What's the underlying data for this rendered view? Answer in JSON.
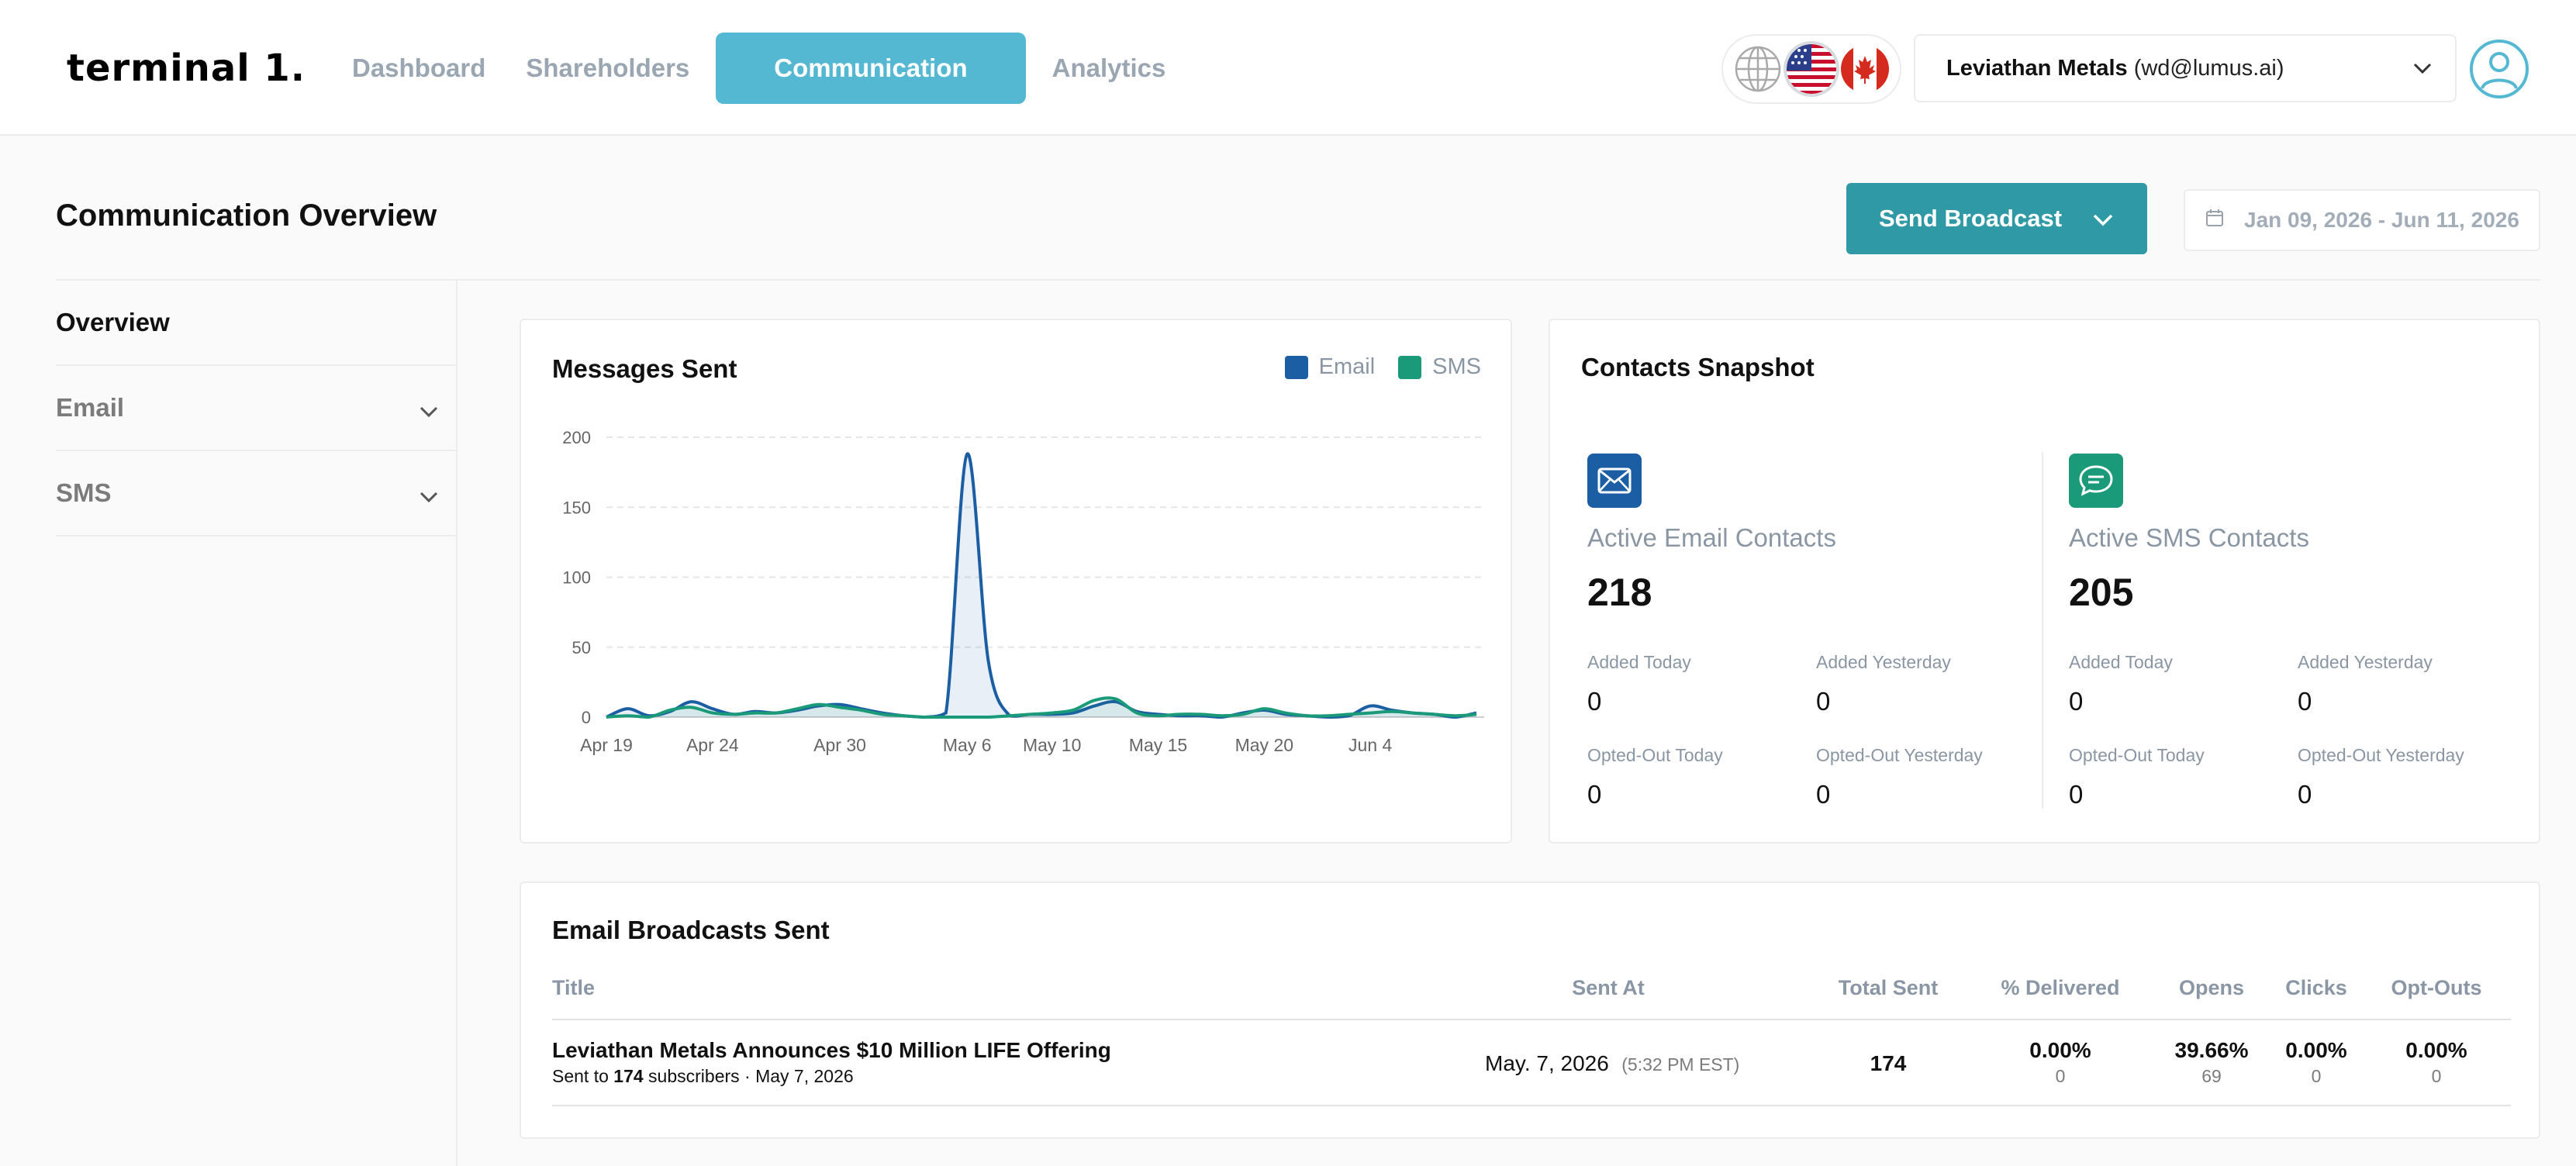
{
  "brand": {
    "logo": "terminal 1."
  },
  "nav": {
    "items": [
      {
        "label": "Dashboard"
      },
      {
        "label": "Shareholders"
      },
      {
        "label": "Communication"
      },
      {
        "label": "Analytics"
      }
    ],
    "active": "Communication"
  },
  "language": {
    "options": [
      "globe-icon",
      "us-flag-icon",
      "canada-flag-icon"
    ],
    "selected": "us-flag-icon"
  },
  "account": {
    "name": "Leviathan Metals",
    "email": "(wd@lumus.ai)"
  },
  "page": {
    "title": "Communication Overview",
    "send_button": "Send Broadcast",
    "date_range": "Jan 09, 2026 - Jun 11, 2026"
  },
  "sidebar": {
    "items": [
      {
        "label": "Overview"
      },
      {
        "label": "Email"
      },
      {
        "label": "SMS"
      }
    ]
  },
  "messages_card": {
    "title": "Messages Sent",
    "legend": [
      {
        "label": "Email",
        "color": "#1b5ea3"
      },
      {
        "label": "SMS",
        "color": "#1a9a78"
      }
    ]
  },
  "chart_data": {
    "type": "area",
    "title": "Messages Sent",
    "y_ticks": [
      "0",
      "50",
      "100",
      "150",
      "200"
    ],
    "ylim": [
      0,
      200
    ],
    "x_ticks": [
      "Apr 19",
      "Apr 24",
      "Apr 30",
      "May 6",
      "May 10",
      "May 15",
      "May 20",
      "Jun 4"
    ],
    "x": [
      "Apr 19",
      "Apr 20",
      "Apr 21",
      "Apr 22",
      "Apr 23",
      "Apr 24",
      "Apr 25",
      "Apr 26",
      "Apr 27",
      "Apr 28",
      "Apr 29",
      "Apr 30",
      "May 1",
      "May 2",
      "May 3",
      "May 4",
      "May 5",
      "May 6",
      "May 7",
      "May 8",
      "May 9",
      "May 10",
      "May 11",
      "May 12",
      "May 13",
      "May 14",
      "May 15",
      "May 16",
      "May 17",
      "May 18",
      "May 19",
      "May 20",
      "May 21",
      "May 22",
      "May 23",
      "May 24",
      "Jun 4",
      "Jun 5",
      "Jun 6",
      "Jun 7",
      "Jun 8",
      "Jun 9"
    ],
    "series": [
      {
        "name": "Email",
        "color": "#1b5ea3",
        "values": [
          0,
          6,
          1,
          4,
          11,
          6,
          2,
          4,
          3,
          5,
          8,
          9,
          6,
          3,
          1,
          0,
          3,
          188,
          40,
          1,
          2,
          2,
          3,
          8,
          11,
          4,
          2,
          1,
          1,
          0,
          3,
          5,
          2,
          1,
          0,
          1,
          8,
          5,
          3,
          2,
          0,
          3
        ]
      },
      {
        "name": "SMS",
        "color": "#1a9a78",
        "values": [
          0,
          1,
          0,
          5,
          7,
          3,
          2,
          3,
          3,
          6,
          9,
          7,
          5,
          2,
          1,
          0,
          0,
          0,
          0,
          1,
          2,
          3,
          5,
          12,
          13,
          3,
          1,
          2,
          2,
          1,
          2,
          6,
          3,
          1,
          1,
          2,
          3,
          4,
          3,
          2,
          1,
          2
        ]
      }
    ],
    "grid": true,
    "legend": "top-right"
  },
  "contacts_card": {
    "title": "Contacts Snapshot",
    "email": {
      "label": "Active Email Contacts",
      "count": "218",
      "stats": [
        {
          "label": "Added Today",
          "value": "0"
        },
        {
          "label": "Added Yesterday",
          "value": "0"
        },
        {
          "label": "Opted-Out Today",
          "value": "0"
        },
        {
          "label": "Opted-Out Yesterday",
          "value": "0"
        }
      ]
    },
    "sms": {
      "label": "Active SMS Contacts",
      "count": "205",
      "stats": [
        {
          "label": "Added Today",
          "value": "0"
        },
        {
          "label": "Added Yesterday",
          "value": "0"
        },
        {
          "label": "Opted-Out Today",
          "value": "0"
        },
        {
          "label": "Opted-Out Yesterday",
          "value": "0"
        }
      ]
    }
  },
  "broadcasts": {
    "title": "Email Broadcasts Sent",
    "columns": [
      "Title",
      "Sent At",
      "Total Sent",
      "% Delivered",
      "Opens",
      "Clicks",
      "Opt-Outs"
    ],
    "rows": [
      {
        "title": "Leviathan Metals Announces $10 Million LIFE Offering",
        "sub_prefix": "Sent to",
        "sub_count": "174",
        "sub_suffix": "subscribers · May 7, 2026",
        "sent_date": "May. 7, 2026",
        "sent_time": "(5:32 PM EST)",
        "total_sent": "174",
        "delivered": "0.00%",
        "delivered_count": "0",
        "opens": "39.66%",
        "opens_count": "69",
        "clicks": "0.00%",
        "clicks_count": "0",
        "optouts": "0.00%",
        "optouts_count": "0"
      }
    ]
  }
}
